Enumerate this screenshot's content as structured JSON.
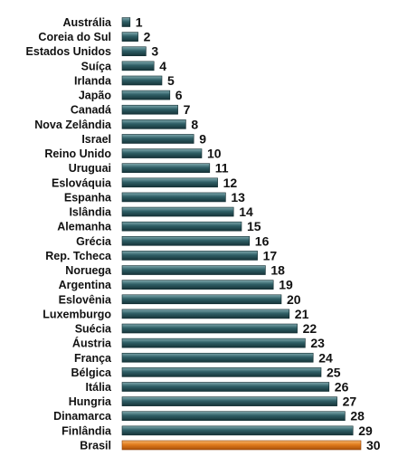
{
  "chart_data": {
    "type": "bar",
    "orientation": "horizontal",
    "title": "",
    "xlabel": "",
    "ylabel": "",
    "categories": [
      "Austrália",
      "Coreia do Sul",
      "Estados Unidos",
      "Suíça",
      "Irlanda",
      "Japão",
      "Canadá",
      "Nova Zelândia",
      "Israel",
      "Reino Unido",
      "Uruguai",
      "Eslováquia",
      "Espanha",
      "Islândia",
      "Alemanha",
      "Grécia",
      "Rep. Tcheca",
      "Noruega",
      "Argentina",
      "Eslovênia",
      "Luxemburgo",
      "Suécia",
      "Áustria",
      "França",
      "Bélgica",
      "Itália",
      "Hungria",
      "Dinamarca",
      "Finlândia",
      "Brasil"
    ],
    "values": [
      1,
      2,
      3,
      4,
      5,
      6,
      7,
      8,
      9,
      10,
      11,
      12,
      13,
      14,
      15,
      16,
      17,
      18,
      19,
      20,
      21,
      22,
      23,
      24,
      25,
      26,
      27,
      28,
      29,
      30
    ],
    "xlim": [
      0,
      30
    ],
    "grid": false,
    "legend": "none",
    "data_labels": true,
    "colors": {
      "bar": "#2f5f66",
      "bar_highlight": "#e07b1c",
      "highlight_category": "Brasil"
    }
  }
}
